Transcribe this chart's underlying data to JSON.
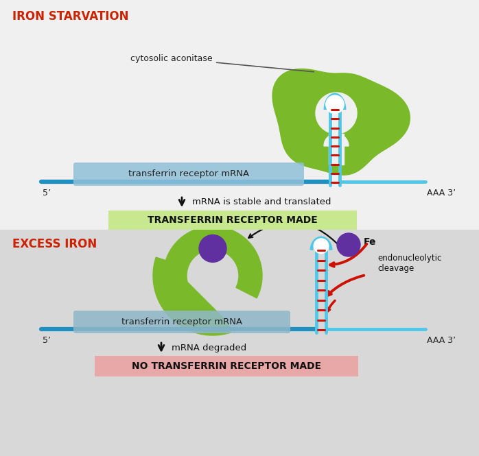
{
  "bg_top": "#f5f5f5",
  "bg_bottom": "#d8d8d8",
  "title_iron_starvation": "IRON STARVATION",
  "title_excess_iron": "EXCESS IRON",
  "title_color": "#cc2200",
  "label_cytosolic": "cytosolic aconitase",
  "label_mrna": "transferrin receptor mRNA",
  "label_5prime": "5’",
  "label_3prime": "AAA 3’",
  "label_stable": "mRNA is stable and translated",
  "label_degraded": "mRNA degraded",
  "label_receptor_made": "TRANSFERRIN RECEPTOR MADE",
  "label_no_receptor": "NO TRANSFERRIN RECEPTOR MADE",
  "label_fe": "Fe",
  "label_endonucleolytic": "endonucleolytic\ncleavage",
  "green_color": "#7aba2a",
  "cyan_color": "#4fc8e8",
  "cyan_dark": "#2090c0",
  "purple_color": "#6030a0",
  "red_color": "#cc1100",
  "mrna_box_color_top": "#90c0d8",
  "mrna_box_color_bottom": "#90b8c8",
  "result_box_green": "#c8e890",
  "result_box_red": "#e8a8a8",
  "white": "#ffffff",
  "black": "#111111",
  "arrow_color": "#333333"
}
